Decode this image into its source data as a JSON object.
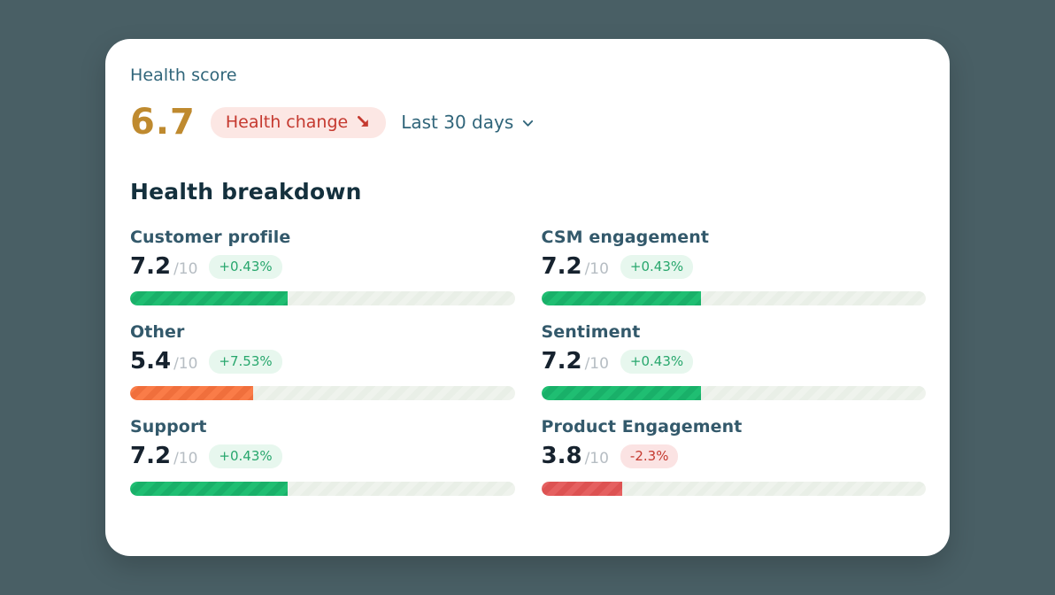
{
  "page": {
    "background_color": "#495F65",
    "card_color": "#FFFFFF"
  },
  "header": {
    "title": "Health score",
    "score": "6.7",
    "score_color": "#BF8A2F",
    "health_change": {
      "label": "Health change",
      "icon": "trend-down-arrow-icon",
      "text_color": "#C5392F",
      "bg_color": "#FCE7E4"
    },
    "period_selector": {
      "label": "Last 30 days",
      "icon": "chevron-down-icon"
    }
  },
  "breakdown": {
    "section_title": "Health breakdown",
    "metrics": [
      {
        "name": "Customer profile",
        "score": "7.2",
        "denominator": "/10",
        "change": "+0.43%",
        "change_tone": "green",
        "bar_tone": "green",
        "bar_color": "#1FBE72",
        "fill_percent": 41
      },
      {
        "name": "CSM engagement",
        "score": "7.2",
        "denominator": "/10",
        "change": "+0.43%",
        "change_tone": "green",
        "bar_tone": "green",
        "bar_color": "#1FBE72",
        "fill_percent": 41.5
      },
      {
        "name": "Other",
        "score": "5.4",
        "denominator": "/10",
        "change": "+7.53%",
        "change_tone": "green",
        "bar_tone": "orange",
        "bar_color": "#FA7C48",
        "fill_percent": 32
      },
      {
        "name": "Sentiment",
        "score": "7.2",
        "denominator": "/10",
        "change": "+0.43%",
        "change_tone": "green",
        "bar_tone": "green",
        "bar_color": "#1FBE72",
        "fill_percent": 41.5
      },
      {
        "name": "Support",
        "score": "7.2",
        "denominator": "/10",
        "change": "+0.43%",
        "change_tone": "green",
        "bar_tone": "green",
        "bar_color": "#1FBE72",
        "fill_percent": 41
      },
      {
        "name": "Product Engagement",
        "score": "3.8",
        "denominator": "/10",
        "change": "-2.3%",
        "change_tone": "red",
        "bar_tone": "red",
        "bar_color": "#E56060",
        "fill_percent": 21
      }
    ]
  },
  "status_colors": {
    "positive_text": "#28A76D",
    "positive_bg": "#E7F7EE",
    "negative_text": "#C5392F",
    "negative_bg": "#FBE3E3",
    "track_bg": "#EFF3ED"
  }
}
